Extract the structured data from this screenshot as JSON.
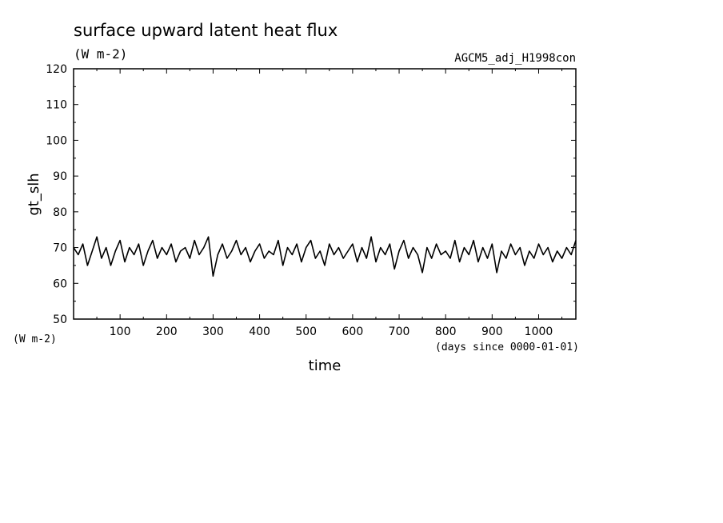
{
  "chart_data": {
    "type": "line",
    "title": "surface upward latent heat flux",
    "subtitle": "(W m-2)",
    "experiment": "AGCM5_adj_H1998con",
    "ylabel": "gt_slh",
    "yunits": "(W m-2)",
    "xlabel": "time",
    "xunits": "(days since 0000-01-01)",
    "xlim": [
      0,
      1080
    ],
    "ylim": [
      50,
      120
    ],
    "xticks": [
      100,
      200,
      300,
      400,
      500,
      600,
      700,
      800,
      900,
      1000
    ],
    "yticks": [
      50,
      60,
      70,
      80,
      90,
      100,
      110,
      120
    ],
    "grid": false,
    "series": [
      {
        "x": [
          0,
          10,
          20,
          30,
          40,
          50,
          60,
          70,
          80,
          90,
          100,
          110,
          120,
          130,
          140,
          150,
          160,
          170,
          180,
          190,
          200,
          210,
          220,
          230,
          240,
          250,
          260,
          270,
          280,
          290,
          300,
          310,
          320,
          330,
          340,
          350,
          360,
          370,
          380,
          390,
          400,
          410,
          420,
          430,
          440,
          450,
          460,
          470,
          480,
          490,
          500,
          510,
          520,
          530,
          540,
          550,
          560,
          570,
          580,
          590,
          600,
          610,
          620,
          630,
          640,
          650,
          660,
          670,
          680,
          690,
          700,
          710,
          720,
          730,
          740,
          750,
          760,
          770,
          780,
          790,
          800,
          810,
          820,
          830,
          840,
          850,
          860,
          870,
          880,
          890,
          900,
          910,
          920,
          930,
          940,
          950,
          960,
          970,
          980,
          990,
          1000,
          1010,
          1020,
          1030,
          1040,
          1050,
          1060,
          1070,
          1080
        ],
        "y": [
          70,
          68,
          71,
          65,
          69,
          73,
          67,
          70,
          65,
          69,
          72,
          66,
          70,
          68,
          71,
          65,
          69,
          72,
          67,
          70,
          68,
          71,
          66,
          69,
          70,
          67,
          72,
          68,
          70,
          73,
          62,
          68,
          71,
          67,
          69,
          72,
          68,
          70,
          66,
          69,
          71,
          67,
          69,
          68,
          72,
          65,
          70,
          68,
          71,
          66,
          70,
          72,
          67,
          69,
          65,
          71,
          68,
          70,
          67,
          69,
          71,
          66,
          70,
          67,
          73,
          66,
          70,
          68,
          71,
          64,
          69,
          72,
          67,
          70,
          68,
          63,
          70,
          67,
          71,
          68,
          69,
          67,
          72,
          66,
          70,
          68,
          72,
          66,
          70,
          67,
          71,
          63,
          69,
          67,
          71,
          68,
          70,
          65,
          69,
          67,
          71,
          68,
          70,
          66,
          69,
          67,
          70,
          68,
          72
        ]
      }
    ]
  }
}
